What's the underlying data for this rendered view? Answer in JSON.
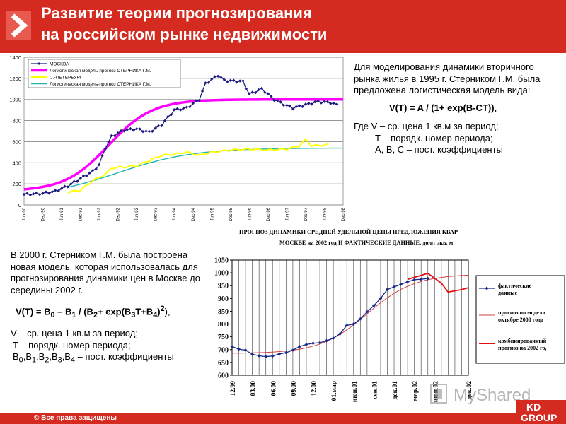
{
  "header": {
    "title_line1": "Развитие теории прогнозирования",
    "title_line2": "на российском рынке недвижимости"
  },
  "chart1": {
    "legend": [
      "МОСКВА",
      "Логистическая модель-прогноз СТЕРНИКА Г.М.",
      "С.-ПЕТЕРБУРГ",
      "Логистическая модель-прогноз СТЕРНИКА Г.М."
    ],
    "y_ticks": [
      "0",
      "200",
      "400",
      "600",
      "800",
      "1000",
      "1200",
      "1400"
    ],
    "x_ticks": [
      "Jun-90",
      "Dec-90",
      "Jun-91",
      "Dec-91",
      "Jun-92",
      "Dec-92",
      "Jun-93",
      "Dec-93",
      "Jun-94",
      "Dec-94",
      "Jun-95",
      "Dec-95",
      "Jun-96",
      "Dec-96",
      "Jun-97",
      "Dec-97",
      "Jun-98",
      "Dec-98"
    ]
  },
  "right_text": {
    "p1": "Для моделирования динамики вторичного рынка жилья в 1995 г. Стерником Г.М. была предложена логистическая модель вида:",
    "formula": "V(T) = A / (1+ exp(B-CT)),",
    "where1": "Где V – ср. цена 1 кв.м за период;",
    "where2": "T – порядк. номер периода;",
    "where3": "A, B, C – пост. коэффициенты"
  },
  "left_text": {
    "p1": "В 2000 г. Стерником Г.М. была построена новая модель, которая использовалась для прогнозирования динамики цен в Москве до середины 2002 г.",
    "formula_a": "V(T) = B",
    "formula_b": " – B",
    "formula_c": " / (B",
    "formula_d": "+ exp(B",
    "formula_e": "T+B",
    "formula_f": ")",
    "formula_g": "),",
    "sub0": "0",
    "sub1": "1",
    "sub2": "2",
    "sub3": "3",
    "sub4": "4",
    "sup2": "2",
    "v1": "V – ср. цена 1 кв.м за период;",
    "v2": "T – порядк. номер периода;",
    "v3": "B0,B1,B2,B3,B4 – пост. коэффициенты"
  },
  "chart2": {
    "title_line1": "ПРОГНОЗ ДИНАМИКИ СРЕДНЕЙ УДЕЛЬНОЙ ЦЕНЫ ПРЕДЛОЖЕНИЯ КВАР",
    "title_line2": "МОСКВЕ на 2002 год И ФАКТИЧЕСКИЕ ДАННЫЕ, долл ./кв. м",
    "y_ticks": [
      "600",
      "650",
      "700",
      "750",
      "800",
      "850",
      "900",
      "950",
      "1000",
      "1050"
    ],
    "x_ticks": [
      "12.99",
      "03.00",
      "06.00",
      "09.00",
      "12.00",
      "01.мар",
      "июн.01",
      "сен.01",
      "дек.01",
      "мар.02",
      "июн.02",
      "дек.02"
    ],
    "legend": [
      "фактические данные",
      "прогноз по модели октябре 2000 года",
      "комбинированный прогноз на 2002 го,"
    ]
  },
  "footer": {
    "copyright": "© Все права защищены"
  },
  "watermark": {
    "text": "MyShared"
  },
  "logo": {
    "line1": "KD",
    "line2": "GROUP"
  }
}
